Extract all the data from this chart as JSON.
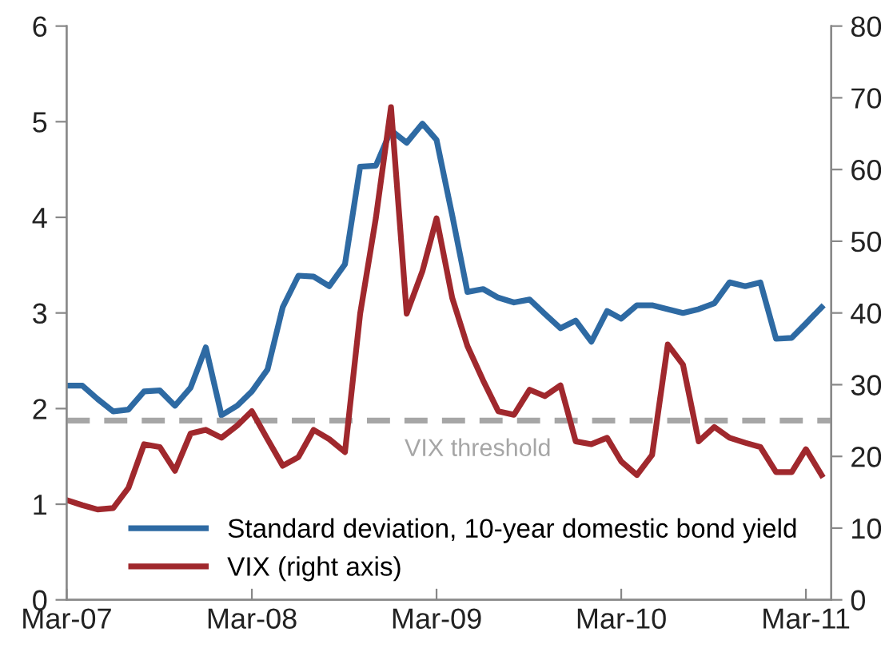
{
  "chart_data": {
    "type": "line",
    "x": [
      "2007-03",
      "2007-04",
      "2007-05",
      "2007-06",
      "2007-07",
      "2007-08",
      "2007-09",
      "2007-10",
      "2007-11",
      "2007-12",
      "2008-01",
      "2008-02",
      "2008-03",
      "2008-04",
      "2008-05",
      "2008-06",
      "2008-07",
      "2008-08",
      "2008-09",
      "2008-10",
      "2008-11",
      "2008-12",
      "2009-01",
      "2009-02",
      "2009-03",
      "2009-04",
      "2009-05",
      "2009-06",
      "2009-07",
      "2009-08",
      "2009-09",
      "2009-10",
      "2009-11",
      "2009-12",
      "2010-01",
      "2010-02",
      "2010-03",
      "2010-04",
      "2010-05",
      "2010-06",
      "2010-07",
      "2010-08",
      "2010-09",
      "2010-10",
      "2010-11",
      "2010-12",
      "2011-01",
      "2011-02",
      "2011-03",
      "2011-04"
    ],
    "series": [
      {
        "name": "Standard deviation, 10-year domestic bond yield",
        "color": "#2e6aa3",
        "values": [
          2.24,
          2.24,
          2.1,
          1.97,
          1.99,
          2.18,
          2.19,
          2.03,
          2.22,
          2.64,
          1.93,
          2.03,
          2.18,
          2.41,
          3.06,
          3.39,
          3.38,
          3.28,
          3.51,
          4.53,
          4.54,
          4.91,
          4.78,
          4.98,
          4.81,
          4.02,
          3.22,
          3.25,
          3.16,
          3.11,
          3.14,
          2.99,
          2.84,
          2.92,
          2.7,
          3.02,
          2.94,
          3.08,
          3.08,
          3.04,
          3.0,
          3.04,
          3.1,
          3.32,
          3.28,
          3.32,
          2.73,
          2.74,
          2.89,
          3.06
        ]
      },
      {
        "name": "VIX (right axis)",
        "color": "#a0282d",
        "axis": "y2",
        "values": [
          13.9,
          13.2,
          12.6,
          12.8,
          15.6,
          21.7,
          21.3,
          18.0,
          23.2,
          23.7,
          22.6,
          24.3,
          26.3,
          22.4,
          18.7,
          19.9,
          23.7,
          22.4,
          20.6,
          39.9,
          53.2,
          68.7,
          39.9,
          45.8,
          53.2,
          42.1,
          35.4,
          30.6,
          26.3,
          25.8,
          29.3,
          28.4,
          29.9,
          22.1,
          21.7,
          22.6,
          19.3,
          17.4,
          20.2,
          35.6,
          32.8,
          22.1,
          24.1,
          22.6,
          21.9,
          21.3,
          17.8,
          17.8,
          21.0,
          17.4
        ]
      }
    ],
    "xlim": [
      "2007-03-01",
      "2011-04-20"
    ],
    "xticks": [
      {
        "value": "2007-03",
        "label": "Mar-07"
      },
      {
        "value": "2008-03",
        "label": "Mar-08"
      },
      {
        "value": "2009-03",
        "label": "Mar-09"
      },
      {
        "value": "2010-03",
        "label": "Mar-10"
      },
      {
        "value": "2011-03",
        "label": "Mar-11"
      }
    ],
    "ylim": [
      0,
      6
    ],
    "yticks": [
      0,
      1,
      2,
      3,
      4,
      5,
      6
    ],
    "y2lim": [
      0,
      80
    ],
    "y2ticks": [
      0,
      10,
      20,
      30,
      40,
      50,
      60,
      70,
      80
    ],
    "ref_lines": [
      {
        "axis": "y2",
        "value": 25,
        "label": "VIX threshold",
        "color": "#a6a6a6",
        "line_style": "dashed"
      }
    ],
    "legend": "bottom left",
    "grid": false,
    "marker": "none",
    "line_style": "solid"
  }
}
